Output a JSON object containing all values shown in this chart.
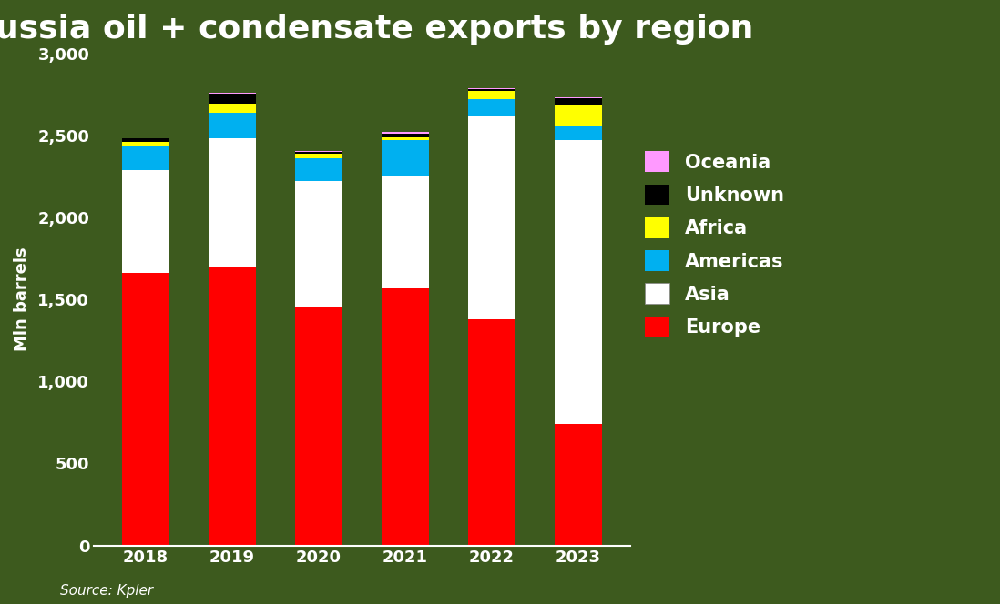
{
  "title": "Russia oil + condensate exports by region",
  "years": [
    2018,
    2019,
    2020,
    2021,
    2022,
    2023
  ],
  "regions": [
    "Europe",
    "Asia",
    "Americas",
    "Africa",
    "Unknown",
    "Oceania"
  ],
  "colors": {
    "Europe": "#ff0000",
    "Asia": "#ffffff",
    "Americas": "#00b0f0",
    "Africa": "#ffff00",
    "Unknown": "#000000",
    "Oceania": "#ff99ff"
  },
  "data": {
    "Europe": [
      1660,
      1700,
      1450,
      1570,
      1380,
      740
    ],
    "Asia": [
      630,
      780,
      770,
      680,
      1240,
      1730
    ],
    "Americas": [
      140,
      160,
      140,
      220,
      100,
      90
    ],
    "Africa": [
      30,
      55,
      30,
      20,
      50,
      130
    ],
    "Unknown": [
      20,
      60,
      10,
      20,
      10,
      35
    ],
    "Oceania": [
      5,
      5,
      5,
      10,
      5,
      5
    ]
  },
  "ylabel": "Mln barrels",
  "ylim": [
    0,
    3000
  ],
  "yticks": [
    0,
    500,
    1000,
    1500,
    2000,
    2500,
    3000
  ],
  "source": "Source: Kpler",
  "background_color": "#3d5a1e",
  "bar_width": 0.55,
  "title_fontsize": 26,
  "axis_label_fontsize": 13,
  "tick_fontsize": 13,
  "legend_fontsize": 15,
  "source_fontsize": 11
}
